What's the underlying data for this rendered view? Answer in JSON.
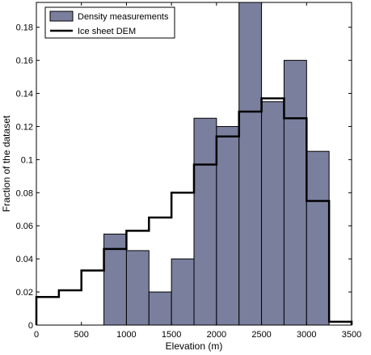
{
  "chart_data": {
    "type": "bar",
    "xlabel": "Elevation (m)",
    "ylabel": "Fraction of the dataset",
    "xlim": [
      0,
      3500
    ],
    "ylim": [
      0,
      0.195
    ],
    "xticks": [
      "0",
      "500",
      "1000",
      "1500",
      "2000",
      "2500",
      "3000",
      "3500"
    ],
    "xtick_values": [
      0,
      500,
      1000,
      1500,
      2000,
      2500,
      3000,
      3500
    ],
    "yticks": [
      "0",
      "0.02",
      "0.04",
      "0.06",
      "0.08",
      "0.1",
      "0.12",
      "0.14",
      "0.16",
      "0.18"
    ],
    "ytick_values": [
      0,
      0.02,
      0.04,
      0.06,
      0.08,
      0.1,
      0.12,
      0.14,
      0.16,
      0.18
    ],
    "grid": false,
    "legend_position": "top-left",
    "series": [
      {
        "name": "Density measurements",
        "kind": "histogram-bars",
        "color": "#7b7f9e",
        "edgecolor": "#000000",
        "bin_edges": [
          750,
          1000,
          1250,
          1500,
          1750,
          2000,
          2250,
          2500,
          2750,
          3000,
          3250
        ],
        "values": [
          0.055,
          0.045,
          0.02,
          0.04,
          0.125,
          0.12,
          0.196,
          0.135,
          0.16,
          0.105
        ]
      },
      {
        "name": "Ice sheet DEM",
        "kind": "step-line",
        "color": "#000000",
        "bin_edges": [
          0,
          250,
          500,
          750,
          1000,
          1250,
          1500,
          1750,
          2000,
          2250,
          2500,
          2750,
          3000,
          3250,
          3500
        ],
        "values": [
          0.017,
          0.021,
          0.033,
          0.046,
          0.057,
          0.065,
          0.08,
          0.097,
          0.114,
          0.129,
          0.137,
          0.125,
          0.075,
          0.002
        ]
      }
    ]
  }
}
